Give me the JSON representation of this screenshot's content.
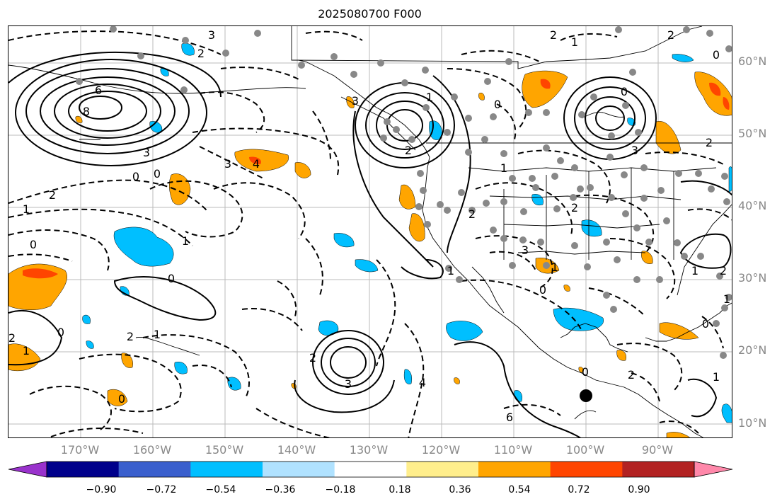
{
  "title": "2025080700 F000",
  "lat_labels": [
    "60°N",
    "50°N",
    "40°N",
    "30°N",
    "20°N",
    "10°N"
  ],
  "lon_labels": [
    "170°W",
    "160°W",
    "150°W",
    "140°W",
    "130°W",
    "120°W",
    "110°W",
    "100°W",
    "90°W"
  ],
  "colorbar": {
    "ticks": [
      "−0.90",
      "−0.72",
      "−0.54",
      "−0.36",
      "−0.18",
      "0.18",
      "0.36",
      "0.54",
      "0.72",
      "0.90"
    ],
    "colors": [
      "#9932cc",
      "#00008b",
      "#3a5fcd",
      "#00bfff",
      "#b0e2ff",
      "#ffffff",
      "#ffee8c",
      "#ffa500",
      "#ff4500",
      "#b22222",
      "#ff88aa"
    ],
    "extend": "both"
  },
  "contour_labels": [
    "3",
    "2",
    "6",
    "8",
    "3",
    "0",
    "0",
    "2",
    "3",
    "4",
    "1",
    "0",
    "1",
    "0",
    "2",
    "1",
    "0",
    "2",
    "1",
    "0",
    "2",
    "3",
    "4",
    "6",
    "1",
    "2",
    "1",
    "0",
    "3",
    "2",
    "1",
    "0",
    "2",
    "1",
    "0",
    "1",
    "2",
    "1",
    "0",
    "3",
    "2",
    "1",
    "2",
    "0",
    "3",
    "2",
    "1",
    "0",
    "2"
  ],
  "colors": {
    "orange": "#ffa500",
    "red": "#ff4500",
    "light_blue": "#00bfff",
    "station": "#888888",
    "grid": "#bbbbbb",
    "tick_label": "#888888"
  }
}
